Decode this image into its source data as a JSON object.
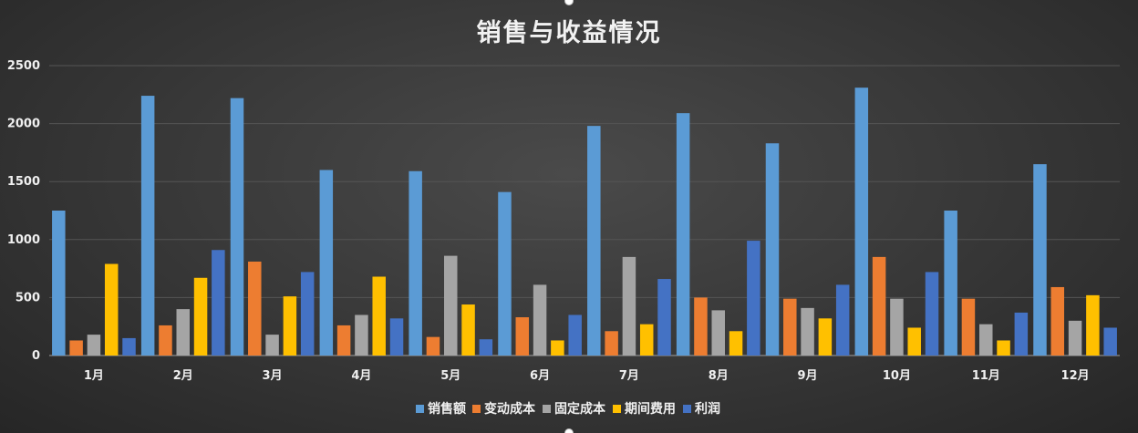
{
  "chart_data": {
    "type": "bar",
    "title": "销售与收益情况",
    "xlabel": "",
    "ylabel": "",
    "ylim": [
      0,
      2500
    ],
    "yticks": [
      0,
      500,
      1000,
      1500,
      2000,
      2500
    ],
    "grid": true,
    "legend_position": "bottom",
    "categories": [
      "1月",
      "2月",
      "3月",
      "4月",
      "5月",
      "6月",
      "7月",
      "8月",
      "9月",
      "10月",
      "11月",
      "12月"
    ],
    "series": [
      {
        "name": "销售额",
        "color": "#5b9bd5",
        "values": [
          1250,
          2240,
          2220,
          1600,
          1590,
          1410,
          1980,
          2090,
          1830,
          2310,
          1250,
          1650
        ]
      },
      {
        "name": "变动成本",
        "color": "#ed7d31",
        "values": [
          130,
          260,
          810,
          260,
          160,
          330,
          210,
          500,
          490,
          850,
          490,
          590
        ]
      },
      {
        "name": "固定成本",
        "color": "#a5a5a5",
        "values": [
          180,
          400,
          180,
          350,
          860,
          610,
          850,
          390,
          410,
          490,
          270,
          300
        ]
      },
      {
        "name": "期间费用",
        "color": "#ffc000",
        "values": [
          790,
          670,
          510,
          680,
          440,
          130,
          270,
          210,
          320,
          240,
          130,
          520
        ]
      },
      {
        "name": "利润",
        "color": "#4472c4",
        "values": [
          150,
          910,
          720,
          320,
          140,
          350,
          660,
          990,
          610,
          720,
          370,
          240
        ]
      }
    ]
  }
}
